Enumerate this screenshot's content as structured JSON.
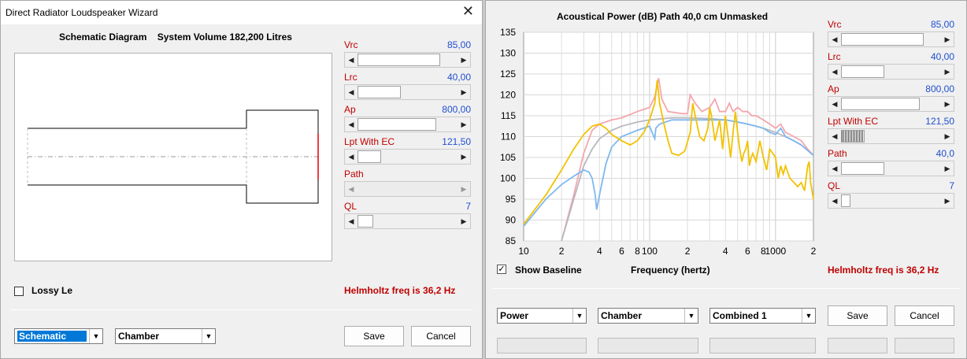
{
  "left": {
    "title": "Direct Radiator Loudspeaker Wizard",
    "close": "✕",
    "diagram_title": "Schematic Diagram",
    "system_volume": "System Volume 182,200 Litres",
    "params": [
      {
        "label": "Vrc",
        "value": "85,00"
      },
      {
        "label": "Lrc",
        "value": "40,00"
      },
      {
        "label": "Ap",
        "value": "800,00"
      },
      {
        "label": "Lpt  With EC",
        "value": "121,50"
      },
      {
        "label": "Path",
        "value": ""
      },
      {
        "label": "QL",
        "value": "7"
      }
    ],
    "lossy_label": "Lossy Le",
    "helmholtz": "Helmholtz freq is 36,2 Hz",
    "combo1": "Schematic",
    "combo2": "Chamber",
    "save": "Save",
    "cancel": "Cancel"
  },
  "right": {
    "chart_title": "Acoustical Power (dB)   Path 40,0 cm   Unmasked",
    "params": [
      {
        "label": "Vrc",
        "value": "85,00"
      },
      {
        "label": "Lrc",
        "value": "40,00"
      },
      {
        "label": "Ap",
        "value": "800,00"
      },
      {
        "label": "Lpt  With EC",
        "value": "121,50"
      },
      {
        "label": "Path",
        "value": "40,0"
      },
      {
        "label": "QL",
        "value": "7"
      }
    ],
    "show_baseline": "Show Baseline",
    "check_mark": "✓",
    "xaxis_label": "Frequency (hertz)",
    "helmholtz": "Helmholtz freq is 36,2 Hz",
    "combo1": "Power",
    "combo2": "Chamber",
    "combo3": "Combined 1",
    "save": "Save",
    "cancel": "Cancel"
  },
  "chart_data": {
    "type": "line",
    "title": "Acoustical Power (dB)   Path 40,0 cm   Unmasked",
    "xlabel": "Frequency (hertz)",
    "ylabel": "",
    "xscale": "log",
    "xlim": [
      10,
      2000
    ],
    "ylim": [
      85,
      135
    ],
    "yticks": [
      85,
      90,
      95,
      100,
      105,
      110,
      115,
      120,
      125,
      130,
      135
    ],
    "xtick_labels": [
      "10",
      "2",
      "4",
      "6",
      "8",
      "100",
      "2",
      "4",
      "6",
      "8",
      "1000",
      "2"
    ],
    "xtick_values": [
      10,
      20,
      40,
      60,
      80,
      100,
      200,
      400,
      600,
      800,
      1000,
      2000
    ],
    "grid": true,
    "series": [
      {
        "color": "#f4a6ad",
        "points": [
          [
            20,
            85
          ],
          [
            25,
            96
          ],
          [
            30,
            106
          ],
          [
            35,
            111.5
          ],
          [
            40,
            113
          ],
          [
            50,
            114
          ],
          [
            60,
            114.5
          ],
          [
            80,
            116
          ],
          [
            100,
            117
          ],
          [
            110,
            119.5
          ],
          [
            118,
            124
          ],
          [
            125,
            119
          ],
          [
            140,
            116
          ],
          [
            180,
            115.5
          ],
          [
            200,
            115.5
          ],
          [
            210,
            120
          ],
          [
            230,
            118
          ],
          [
            260,
            116
          ],
          [
            300,
            117
          ],
          [
            330,
            119
          ],
          [
            360,
            116
          ],
          [
            400,
            116
          ],
          [
            430,
            118
          ],
          [
            460,
            116
          ],
          [
            500,
            117
          ],
          [
            550,
            116
          ],
          [
            600,
            116
          ],
          [
            650,
            115
          ],
          [
            700,
            115
          ],
          [
            800,
            114
          ],
          [
            900,
            113
          ],
          [
            1000,
            112
          ],
          [
            1100,
            113
          ],
          [
            1200,
            111
          ],
          [
            1400,
            110
          ],
          [
            1600,
            109
          ],
          [
            1800,
            107
          ],
          [
            2000,
            105.5
          ]
        ]
      },
      {
        "color": "#b8b8c0",
        "points": [
          [
            20,
            85
          ],
          [
            25,
            95
          ],
          [
            30,
            103
          ],
          [
            35,
            107
          ],
          [
            40,
            109.5
          ],
          [
            50,
            111.5
          ],
          [
            60,
            112.5
          ],
          [
            80,
            113.5
          ],
          [
            100,
            114
          ],
          [
            150,
            114.5
          ],
          [
            200,
            114.5
          ],
          [
            300,
            114.3
          ],
          [
            400,
            114
          ],
          [
            500,
            113.5
          ],
          [
            600,
            113
          ],
          [
            800,
            112
          ],
          [
            1000,
            111
          ],
          [
            1300,
            109.5
          ],
          [
            1600,
            108
          ],
          [
            2000,
            105.5
          ]
        ]
      },
      {
        "color": "#7fb8ee",
        "points": [
          [
            10,
            88.5
          ],
          [
            15,
            95
          ],
          [
            20,
            98.5
          ],
          [
            25,
            100.5
          ],
          [
            30,
            102
          ],
          [
            33,
            101.5
          ],
          [
            35,
            100
          ],
          [
            37,
            96
          ],
          [
            38,
            92.5
          ],
          [
            40,
            96
          ],
          [
            45,
            103.5
          ],
          [
            50,
            107.5
          ],
          [
            60,
            110
          ],
          [
            80,
            111.5
          ],
          [
            100,
            112.5
          ],
          [
            108,
            110
          ],
          [
            110,
            109.5
          ],
          [
            112,
            112
          ],
          [
            120,
            113
          ],
          [
            150,
            114
          ],
          [
            200,
            114
          ],
          [
            300,
            114
          ],
          [
            400,
            114
          ],
          [
            500,
            113.5
          ],
          [
            600,
            113
          ],
          [
            700,
            112.5
          ],
          [
            800,
            112
          ],
          [
            900,
            111
          ],
          [
            1000,
            110.5
          ],
          [
            1100,
            112
          ],
          [
            1200,
            110
          ],
          [
            1400,
            109
          ],
          [
            1600,
            108
          ],
          [
            2000,
            105.5
          ]
        ]
      },
      {
        "color": "#f2c200",
        "points": [
          [
            10,
            89
          ],
          [
            15,
            96
          ],
          [
            20,
            102
          ],
          [
            25,
            107
          ],
          [
            30,
            110.5
          ],
          [
            35,
            112.5
          ],
          [
            40,
            113
          ],
          [
            45,
            112
          ],
          [
            50,
            110.5
          ],
          [
            60,
            109
          ],
          [
            70,
            108
          ],
          [
            80,
            109
          ],
          [
            90,
            111
          ],
          [
            100,
            114
          ],
          [
            110,
            118
          ],
          [
            115,
            123.5
          ],
          [
            120,
            118
          ],
          [
            130,
            113
          ],
          [
            140,
            109
          ],
          [
            150,
            106
          ],
          [
            170,
            105.5
          ],
          [
            190,
            106.5
          ],
          [
            210,
            111
          ],
          [
            220,
            118
          ],
          [
            230,
            115
          ],
          [
            250,
            110
          ],
          [
            270,
            109
          ],
          [
            290,
            112
          ],
          [
            300,
            117
          ],
          [
            310,
            115
          ],
          [
            330,
            109
          ],
          [
            360,
            114
          ],
          [
            380,
            107
          ],
          [
            400,
            115
          ],
          [
            420,
            110
          ],
          [
            440,
            105
          ],
          [
            460,
            111
          ],
          [
            480,
            116
          ],
          [
            500,
            111
          ],
          [
            520,
            107
          ],
          [
            540,
            104
          ],
          [
            560,
            106
          ],
          [
            580,
            107
          ],
          [
            600,
            109
          ],
          [
            620,
            103
          ],
          [
            640,
            105
          ],
          [
            660,
            106
          ],
          [
            700,
            104
          ],
          [
            750,
            109
          ],
          [
            800,
            105
          ],
          [
            850,
            102
          ],
          [
            900,
            107
          ],
          [
            950,
            106
          ],
          [
            1000,
            105
          ],
          [
            1050,
            100
          ],
          [
            1100,
            103
          ],
          [
            1150,
            101
          ],
          [
            1200,
            103
          ],
          [
            1300,
            100
          ],
          [
            1400,
            99
          ],
          [
            1500,
            98
          ],
          [
            1600,
            99
          ],
          [
            1700,
            97
          ],
          [
            1800,
            103
          ],
          [
            1850,
            104
          ],
          [
            1900,
            99
          ],
          [
            2000,
            95
          ]
        ]
      }
    ]
  }
}
